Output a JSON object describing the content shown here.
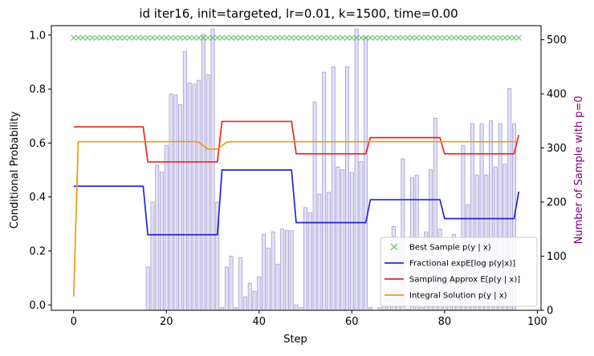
{
  "chart_data": {
    "type": "line",
    "title": "id iter16, init=targeted, lr=0.01, k=1500, time=0.00",
    "xlabel": "Step",
    "ylabel": "Conditional Probability",
    "ylabel_right": "Number of Sample with p=0",
    "xlim": [
      -4.8,
      100.8
    ],
    "ylim": [
      -0.02,
      1.035
    ],
    "ylim_right": [
      0,
      526
    ],
    "x_ticks": [
      0,
      20,
      40,
      60,
      80,
      100
    ],
    "y_ticks": [
      0.0,
      0.2,
      0.4,
      0.6,
      0.8,
      1.0
    ],
    "y_right_ticks": [
      0,
      100,
      200,
      300,
      400,
      500
    ],
    "grid": false,
    "legend_position": "lower-right",
    "colors": {
      "best": "#5cb85c",
      "fractional": "#2222dd",
      "sampling": "#ee2222",
      "integral": "#f09a10",
      "bars_fill": "#c8c8ee",
      "bars_edge": "#a89ed0",
      "right_label": "#800080"
    },
    "legend": [
      {
        "key": "best",
        "label": "Best Sample p(y | x)"
      },
      {
        "key": "fractional",
        "label": "Fractional expE[log p(y|x)]"
      },
      {
        "key": "sampling",
        "label": "Sampling Approx E[p(y | x)]"
      },
      {
        "key": "integral",
        "label": "Integral Solution p(y | x)"
      }
    ],
    "best_sample": {
      "x_start": 0,
      "x_end": 96,
      "y": 0.99
    },
    "fractional": {
      "segments": [
        {
          "x0": 0,
          "x1": 15,
          "y": 0.44
        },
        {
          "x0": 16,
          "x1": 31,
          "y": 0.26
        },
        {
          "x0": 32,
          "x1": 47,
          "y": 0.5
        },
        {
          "x0": 48,
          "x1": 63,
          "y": 0.305
        },
        {
          "x0": 64,
          "x1": 79,
          "y": 0.39
        },
        {
          "x0": 80,
          "x1": 95,
          "y": 0.32
        }
      ],
      "last": {
        "x": 96,
        "y": 0.42
      }
    },
    "sampling": {
      "segments": [
        {
          "x0": 0,
          "x1": 15,
          "y": 0.66
        },
        {
          "x0": 16,
          "x1": 31,
          "y": 0.53
        },
        {
          "x0": 32,
          "x1": 47,
          "y": 0.68
        },
        {
          "x0": 48,
          "x1": 63,
          "y": 0.56
        },
        {
          "x0": 64,
          "x1": 79,
          "y": 0.62
        },
        {
          "x0": 80,
          "x1": 95,
          "y": 0.56
        }
      ],
      "last": {
        "x": 96,
        "y": 0.63
      }
    },
    "integral": {
      "x": [
        0,
        1,
        10,
        20,
        26,
        27,
        28,
        29,
        30,
        31,
        32,
        33,
        34,
        40,
        50,
        60,
        70,
        80,
        90,
        96
      ],
      "y": [
        0.03,
        0.605,
        0.605,
        0.605,
        0.605,
        0.603,
        0.59,
        0.577,
        0.577,
        0.578,
        0.59,
        0.603,
        0.605,
        0.605,
        0.605,
        0.605,
        0.605,
        0.605,
        0.605,
        0.605
      ]
    },
    "bars": {
      "x": [
        16,
        17,
        18,
        19,
        20,
        21,
        22,
        23,
        24,
        25,
        26,
        27,
        28,
        29,
        30,
        31,
        32,
        33,
        34,
        35,
        36,
        37,
        38,
        39,
        40,
        41,
        42,
        43,
        44,
        45,
        46,
        47,
        48,
        49,
        50,
        51,
        52,
        53,
        54,
        55,
        56,
        57,
        58,
        59,
        60,
        61,
        62,
        63,
        64,
        65,
        66,
        67,
        68,
        69,
        70,
        71,
        72,
        73,
        74,
        75,
        76,
        77,
        78,
        79,
        80,
        81,
        82,
        83,
        84,
        85,
        86,
        87,
        88,
        89,
        90,
        91,
        92,
        93,
        94,
        95
      ],
      "values": [
        80,
        200,
        268,
        255,
        305,
        400,
        398,
        380,
        478,
        420,
        418,
        425,
        510,
        435,
        520,
        200,
        5,
        80,
        100,
        5,
        97,
        25,
        50,
        35,
        62,
        140,
        115,
        145,
        85,
        150,
        148,
        147,
        10,
        5,
        190,
        180,
        385,
        215,
        440,
        218,
        450,
        265,
        260,
        450,
        255,
        520,
        275,
        505,
        5,
        0,
        5,
        30,
        20,
        155,
        130,
        280,
        2,
        245,
        250,
        5,
        145,
        260,
        355,
        150,
        60,
        60,
        140,
        55,
        305,
        195,
        345,
        250,
        345,
        250,
        350,
        265,
        345,
        270,
        410,
        345
      ]
    }
  }
}
